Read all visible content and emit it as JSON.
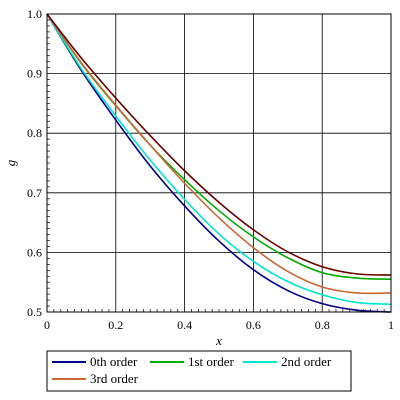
{
  "chart_data": {
    "type": "line",
    "xlabel": "x",
    "ylabel": "g",
    "xlim": [
      0,
      1
    ],
    "ylim": [
      0.5,
      1.0
    ],
    "grid": true,
    "legend_position": "bottom",
    "x_ticks": [
      0,
      0.2,
      0.4,
      0.6,
      0.8,
      1
    ],
    "x_tick_labels": [
      "0",
      "0.2",
      "0.4",
      "0.6",
      "0.8",
      "1"
    ],
    "y_ticks": [
      0.5,
      0.6,
      0.7,
      0.8,
      0.9,
      1.0
    ],
    "y_tick_labels": [
      "0.5",
      "0.6",
      "0.7",
      "0.8",
      "0.9",
      "1.0"
    ],
    "x": [
      0,
      0.1,
      0.2,
      0.3,
      0.4,
      0.5,
      0.6,
      0.7,
      0.8,
      0.9,
      1.0
    ],
    "series": [
      {
        "name": "0th order",
        "color": "#00008b",
        "values": [
          1.0,
          0.905,
          0.822,
          0.745,
          0.678,
          0.619,
          0.571,
          0.536,
          0.514,
          0.503,
          0.5
        ]
      },
      {
        "name": "1st order",
        "color": "#00aa00",
        "values": [
          1.0,
          0.917,
          0.846,
          0.78,
          0.722,
          0.67,
          0.626,
          0.591,
          0.566,
          0.557,
          0.555
        ]
      },
      {
        "name": "2nd order",
        "color": "#00e5cc",
        "values": [
          1.0,
          0.908,
          0.829,
          0.755,
          0.689,
          0.631,
          0.585,
          0.551,
          0.529,
          0.516,
          0.513
        ]
      },
      {
        "name": "3rd order",
        "color": "#cc6633",
        "values": [
          1.0,
          0.918,
          0.847,
          0.78,
          0.716,
          0.658,
          0.608,
          0.568,
          0.542,
          0.532,
          0.532
        ]
      },
      {
        "name": "",
        "color": "#6b0000",
        "values": [
          1.0,
          0.926,
          0.859,
          0.796,
          0.737,
          0.684,
          0.638,
          0.601,
          0.576,
          0.564,
          0.562
        ]
      }
    ]
  }
}
